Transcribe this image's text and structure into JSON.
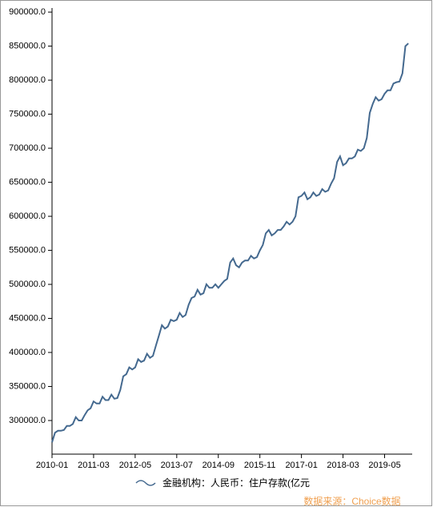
{
  "chart_data": {
    "type": "line",
    "legend_label": "金融机构：人民币：住户存款(亿元",
    "source": "数据来源：Choice数据",
    "categories": [
      "2010-01",
      null,
      null,
      null,
      null,
      null,
      null,
      null,
      null,
      null,
      null,
      null,
      null,
      null,
      "2011-03",
      null,
      null,
      null,
      null,
      null,
      null,
      null,
      null,
      null,
      null,
      null,
      null,
      null,
      "2012-05",
      null,
      null,
      null,
      null,
      null,
      null,
      null,
      null,
      null,
      null,
      null,
      null,
      null,
      "2013-07",
      null,
      null,
      null,
      null,
      null,
      null,
      null,
      null,
      null,
      null,
      null,
      null,
      null,
      "2014-09",
      null,
      null,
      null,
      null,
      null,
      null,
      null,
      null,
      null,
      null,
      null,
      null,
      null,
      "2015-11",
      null,
      null,
      null,
      null,
      null,
      null,
      null,
      null,
      null,
      null,
      null,
      null,
      null,
      "2017-01",
      null,
      null,
      null,
      null,
      null,
      null,
      null,
      null,
      null,
      null,
      null,
      null,
      null,
      "2018-03",
      null,
      null,
      null,
      null,
      null,
      null,
      null,
      null,
      null,
      null,
      null,
      null,
      null,
      "2019-05",
      null,
      null,
      null,
      null,
      null,
      null,
      null,
      null
    ],
    "series": [
      {
        "name": "金融机构：人民币：住户存款(亿元",
        "color": "#44698f",
        "values": [
          268000,
          282000,
          285000,
          285000,
          286000,
          292000,
          292000,
          295000,
          305000,
          300000,
          300000,
          308000,
          315000,
          318000,
          328000,
          325000,
          325000,
          335000,
          330000,
          330000,
          338000,
          332000,
          333000,
          345000,
          365000,
          368000,
          378000,
          375000,
          378000,
          390000,
          386000,
          388000,
          398000,
          392000,
          395000,
          410000,
          425000,
          440000,
          435000,
          438000,
          448000,
          446000,
          448000,
          458000,
          452000,
          455000,
          470000,
          480000,
          482000,
          492000,
          485000,
          487000,
          500000,
          495000,
          495000,
          500000,
          495000,
          500000,
          505000,
          508000,
          532000,
          538000,
          528000,
          525000,
          532000,
          535000,
          535000,
          542000,
          538000,
          540000,
          550000,
          558000,
          575000,
          580000,
          572000,
          575000,
          580000,
          580000,
          585000,
          592000,
          588000,
          592000,
          600000,
          628000,
          630000,
          635000,
          625000,
          628000,
          635000,
          630000,
          632000,
          640000,
          636000,
          638000,
          648000,
          656000,
          680000,
          688000,
          675000,
          678000,
          685000,
          685000,
          688000,
          698000,
          696000,
          700000,
          715000,
          752000,
          765000,
          775000,
          770000,
          772000,
          780000,
          785000,
          785000,
          795000,
          797000,
          798000,
          810000,
          850000,
          854000
        ]
      }
    ],
    "ylim": [
      250600,
      906000
    ],
    "yticks": [
      {
        "value": 300000,
        "label": "300000.0"
      },
      {
        "value": 350000,
        "label": "350000.0"
      },
      {
        "value": 400000,
        "label": "400000.0"
      },
      {
        "value": 450000,
        "label": "450000.0"
      },
      {
        "value": 500000,
        "label": "500000.0"
      },
      {
        "value": 550000,
        "label": "550000.0"
      },
      {
        "value": 600000,
        "label": "600000.0"
      },
      {
        "value": 650000,
        "label": "650000.0"
      },
      {
        "value": 700000,
        "label": "700000.0"
      },
      {
        "value": 750000,
        "label": "750000.0"
      },
      {
        "value": 800000,
        "label": "800000.0"
      },
      {
        "value": 850000,
        "label": "850000.0"
      },
      {
        "value": 900000,
        "label": "900000.0"
      }
    ],
    "grid": false
  }
}
